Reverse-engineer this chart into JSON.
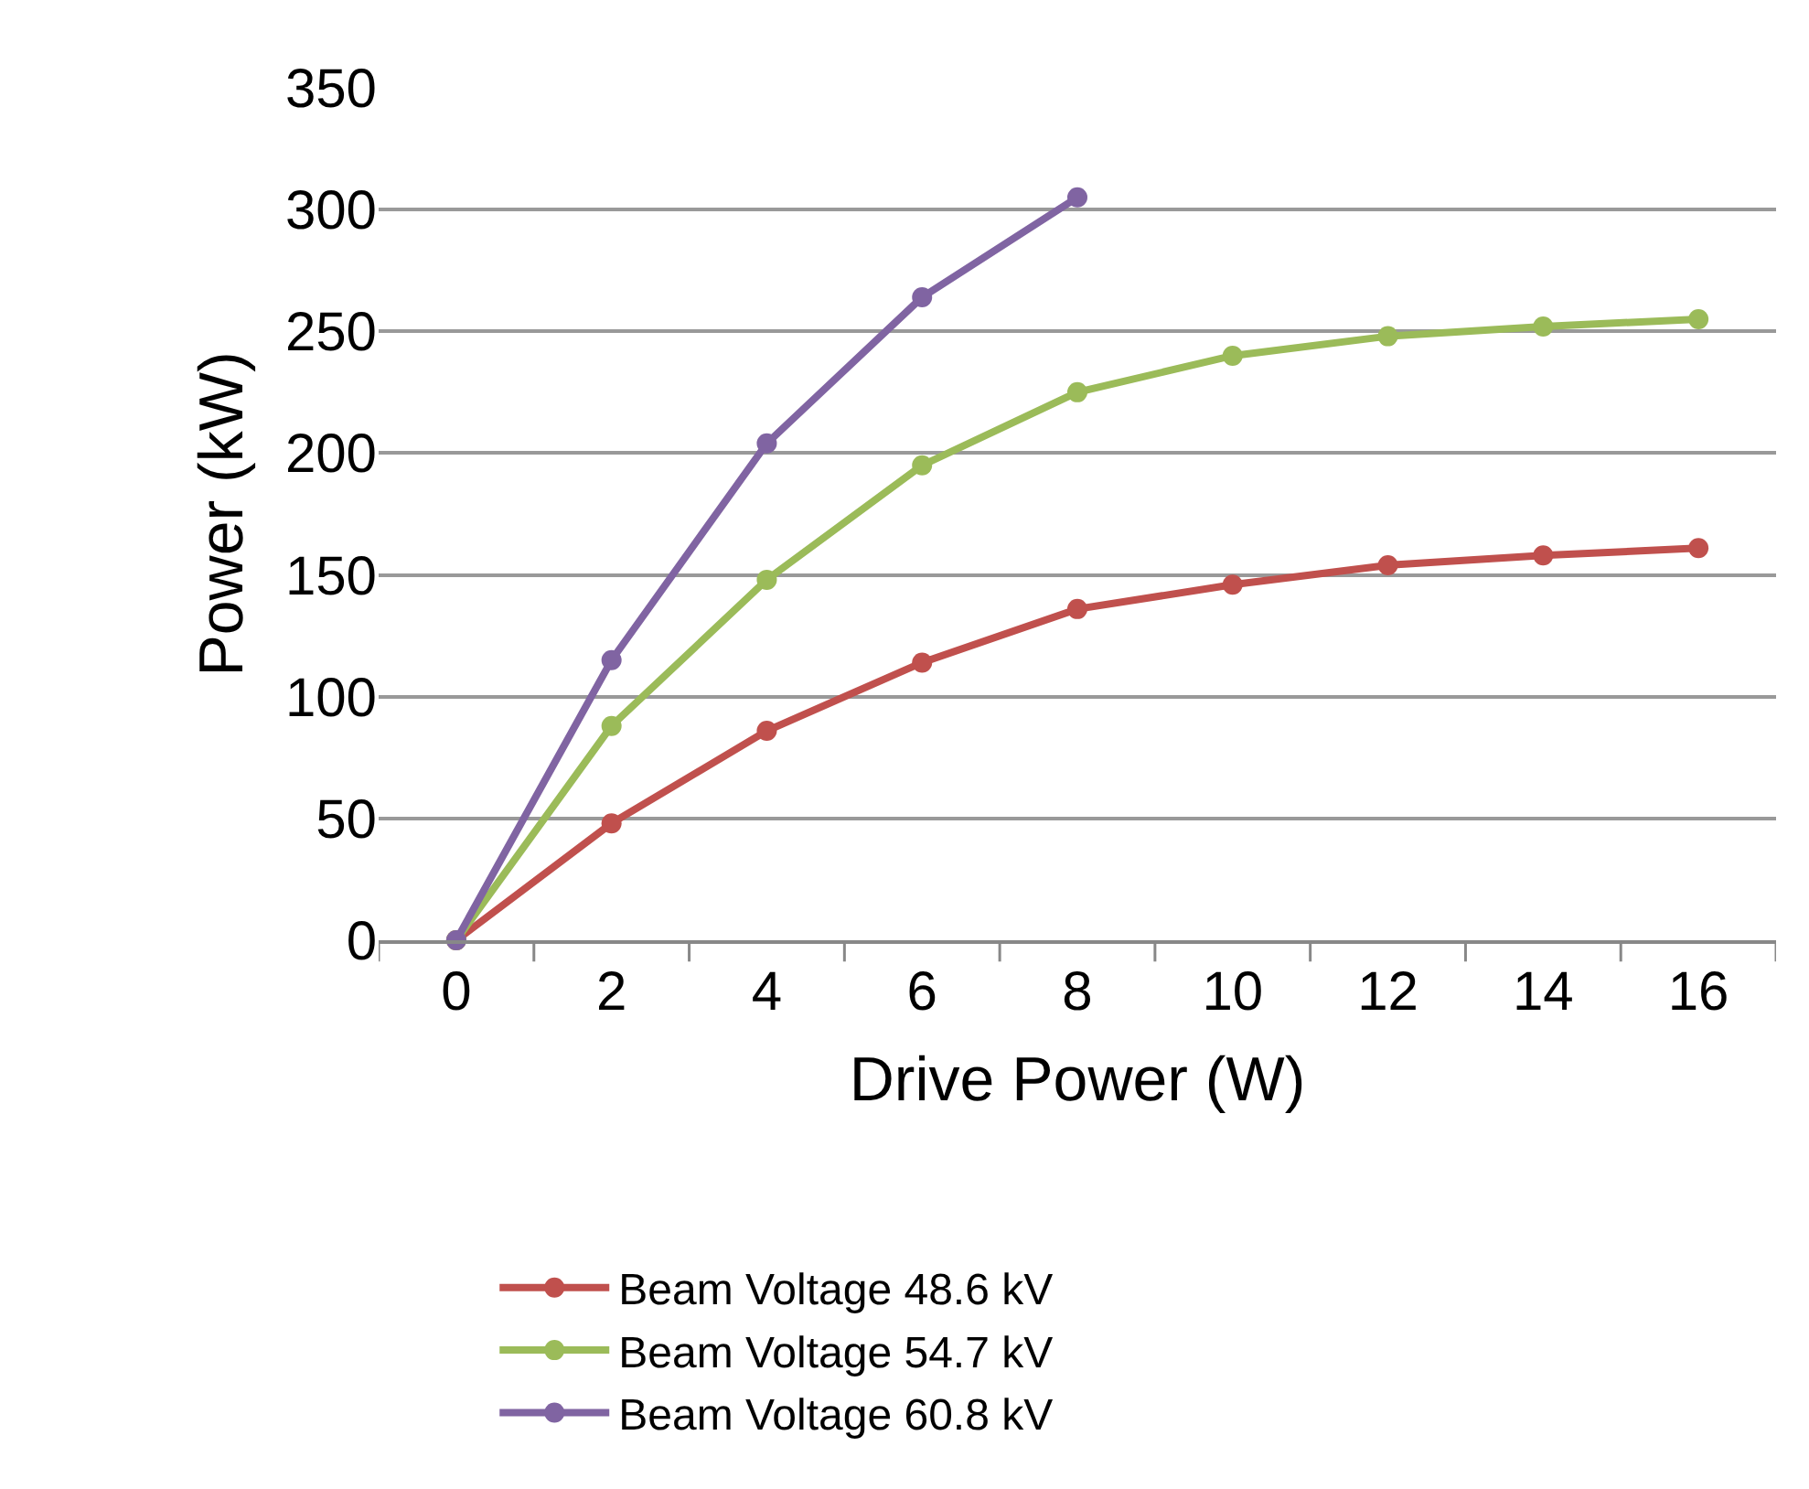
{
  "chart_data": {
    "type": "line",
    "xlabel": "Drive Power (W)",
    "ylabel": "Power (kW)",
    "categories": [
      "0",
      "2",
      "4",
      "6",
      "8",
      "10",
      "12",
      "14",
      "16"
    ],
    "series": [
      {
        "name": "Beam Voltage 48.6 kV",
        "color": "#c0504d",
        "values": [
          0,
          48,
          86,
          114,
          136,
          146,
          154,
          158,
          161
        ]
      },
      {
        "name": "Beam Voltage 54.7 kV",
        "color": "#9bbb59",
        "values": [
          0,
          88,
          148,
          195,
          225,
          240,
          248,
          252,
          255
        ]
      },
      {
        "name": "Beam Voltage 60.8 kV",
        "color": "#8064a2",
        "values": [
          0,
          115,
          204,
          264,
          305,
          null,
          null,
          null,
          null
        ]
      }
    ],
    "ylim": [
      0,
      350
    ],
    "yticks": [
      0,
      50,
      100,
      150,
      200,
      250,
      300,
      350
    ],
    "grid": "y",
    "legend": "bottom",
    "marker": "circle",
    "line_style": "solid"
  }
}
